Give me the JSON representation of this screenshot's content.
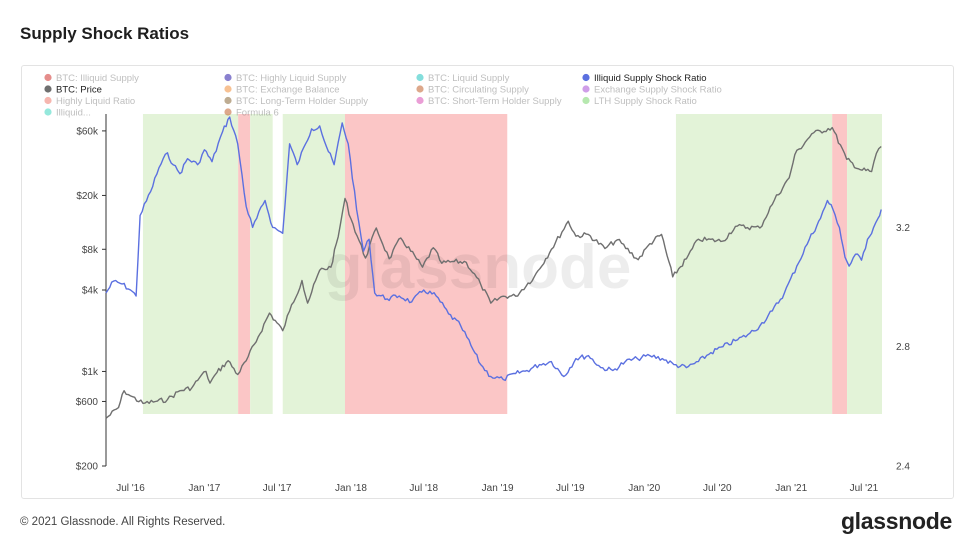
{
  "title": "Supply Shock Ratios",
  "footer": {
    "copyright": "© 2021 Glassnode. All Rights Reserved.",
    "logo": "glassnode"
  },
  "watermark": "glassnode",
  "colors": {
    "price_line": "#6f6f6f",
    "ratio_line": "#5b70e0",
    "green_band": "#e3f3d8",
    "red_band": "#fbc6c6"
  },
  "legend": [
    {
      "label": "BTC: Illiquid Supply",
      "color": "#d0312d",
      "active": false
    },
    {
      "label": "BTC: Highly Liquid Supply",
      "color": "#2a1aa8",
      "active": false
    },
    {
      "label": "BTC: Liquid Supply",
      "color": "#21c4c0",
      "active": false
    },
    {
      "label": "Illiquid Supply Shock Ratio",
      "color": "#5b70e0",
      "active": true
    },
    {
      "label": "BTC: Price",
      "color": "#6f6f6f",
      "active": true
    },
    {
      "label": "BTC: Exchange Balance",
      "color": "#f28f3b",
      "active": false
    },
    {
      "label": "BTC: Circulating Supply",
      "color": "#c2622d",
      "active": false
    },
    {
      "label": "Exchange Supply Shock Ratio",
      "color": "#a950d6",
      "active": false
    },
    {
      "label": "Highly Liquid Ratio",
      "color": "#f07b6e",
      "active": false
    },
    {
      "label": "BTC: Long-Term Holder Supply",
      "color": "#8a6a3a",
      "active": false
    },
    {
      "label": "BTC: Short-Term Holder Supply",
      "color": "#d94fb5",
      "active": false
    },
    {
      "label": "LTH Supply Shock Ratio",
      "color": "#7cd66e",
      "active": false
    },
    {
      "label": "Illiquid...",
      "color": "#3fd6c0",
      "active": false
    },
    {
      "label": "Formula 6",
      "color": "#c2622d",
      "active": false
    }
  ],
  "chart_data": {
    "type": "line",
    "x_tick_labels": [
      "Jul '16",
      "Jan '17",
      "Jul '17",
      "Jan '18",
      "Jul '18",
      "Jan '19",
      "Jul '19",
      "Jan '20",
      "Jul '20",
      "Jan '21",
      "Jul '21"
    ],
    "x_tick_dates": [
      "2016-07-01",
      "2017-01-01",
      "2017-07-01",
      "2018-01-01",
      "2018-07-01",
      "2019-01-01",
      "2019-07-01",
      "2020-01-01",
      "2020-07-01",
      "2021-01-01",
      "2021-07-01"
    ],
    "x_range": [
      "2016-05-01",
      "2021-08-15"
    ],
    "y_left": {
      "label": "",
      "scale": "log",
      "range": [
        200,
        80000
      ],
      "ticks": [
        200,
        600,
        1000,
        4000,
        8000,
        20000,
        60000
      ],
      "tick_labels": [
        "$200",
        "$600",
        "$1k",
        "$4k",
        "$8k",
        "$20k",
        "$60k"
      ]
    },
    "y_right": {
      "label": "",
      "scale": "linear",
      "range": [
        2.4,
        3.58
      ],
      "ticks": [
        2.4,
        2.8,
        3.2
      ],
      "tick_labels": [
        "2.4",
        "2.8",
        "3.2"
      ]
    },
    "series": [
      {
        "name": "BTC: Price",
        "axis": "left",
        "color": "#6f6f6f",
        "points": [
          [
            "2016-05-01",
            450
          ],
          [
            "2016-06-01",
            540
          ],
          [
            "2016-06-15",
            720
          ],
          [
            "2016-07-01",
            660
          ],
          [
            "2016-08-01",
            580
          ],
          [
            "2016-09-01",
            600
          ],
          [
            "2016-10-01",
            620
          ],
          [
            "2016-11-01",
            720
          ],
          [
            "2016-12-01",
            760
          ],
          [
            "2016-12-20",
            900
          ],
          [
            "2017-01-05",
            1000
          ],
          [
            "2017-01-15",
            820
          ],
          [
            "2017-02-01",
            980
          ],
          [
            "2017-03-01",
            1200
          ],
          [
            "2017-03-25",
            950
          ],
          [
            "2017-04-15",
            1200
          ],
          [
            "2017-05-15",
            1800
          ],
          [
            "2017-06-12",
            2700
          ],
          [
            "2017-07-15",
            2000
          ],
          [
            "2017-08-01",
            2800
          ],
          [
            "2017-09-01",
            4700
          ],
          [
            "2017-09-15",
            3200
          ],
          [
            "2017-10-15",
            5600
          ],
          [
            "2017-11-12",
            5900
          ],
          [
            "2017-11-30",
            9900
          ],
          [
            "2017-12-17",
            19000
          ],
          [
            "2018-01-01",
            13400
          ],
          [
            "2018-02-06",
            6900
          ],
          [
            "2018-03-05",
            11500
          ],
          [
            "2018-04-06",
            6800
          ],
          [
            "2018-05-05",
            9700
          ],
          [
            "2018-06-28",
            5900
          ],
          [
            "2018-07-25",
            8200
          ],
          [
            "2018-08-15",
            6300
          ],
          [
            "2018-09-15",
            6500
          ],
          [
            "2018-10-15",
            6400
          ],
          [
            "2018-11-20",
            4400
          ],
          [
            "2018-12-15",
            3200
          ],
          [
            "2019-01-15",
            3600
          ],
          [
            "2019-02-15",
            3600
          ],
          [
            "2019-04-02",
            5000
          ],
          [
            "2019-05-15",
            8000
          ],
          [
            "2019-06-26",
            12900
          ],
          [
            "2019-07-15",
            10000
          ],
          [
            "2019-08-15",
            10300
          ],
          [
            "2019-09-25",
            8100
          ],
          [
            "2019-10-26",
            9400
          ],
          [
            "2019-12-17",
            6700
          ],
          [
            "2020-01-15",
            8800
          ],
          [
            "2020-02-13",
            10300
          ],
          [
            "2020-03-12",
            5000
          ],
          [
            "2020-04-15",
            6800
          ],
          [
            "2020-05-15",
            9500
          ],
          [
            "2020-07-15",
            9200
          ],
          [
            "2020-08-15",
            11800
          ],
          [
            "2020-10-15",
            11500
          ],
          [
            "2020-11-20",
            18500
          ],
          [
            "2020-12-27",
            27000
          ],
          [
            "2021-01-10",
            40000
          ],
          [
            "2021-02-21",
            57000
          ],
          [
            "2021-04-13",
            63500
          ],
          [
            "2021-05-19",
            37000
          ],
          [
            "2021-06-22",
            31000
          ],
          [
            "2021-07-20",
            30000
          ],
          [
            "2021-08-01",
            41000
          ],
          [
            "2021-08-13",
            46000
          ]
        ]
      },
      {
        "name": "Illiquid Supply Shock Ratio",
        "axis": "right",
        "color": "#5b70e0",
        "points": [
          [
            "2016-05-01",
            2.98
          ],
          [
            "2016-05-20",
            3.02
          ],
          [
            "2016-06-10",
            3.01
          ],
          [
            "2016-07-01",
            2.99
          ],
          [
            "2016-07-15",
            2.97
          ],
          [
            "2016-07-25",
            3.24
          ],
          [
            "2016-08-20",
            3.32
          ],
          [
            "2016-09-10",
            3.4
          ],
          [
            "2016-10-01",
            3.45
          ],
          [
            "2016-10-15",
            3.41
          ],
          [
            "2016-11-01",
            3.38
          ],
          [
            "2016-11-20",
            3.43
          ],
          [
            "2016-12-15",
            3.41
          ],
          [
            "2017-01-01",
            3.46
          ],
          [
            "2017-01-20",
            3.42
          ],
          [
            "2017-02-15",
            3.52
          ],
          [
            "2017-03-05",
            3.57
          ],
          [
            "2017-03-25",
            3.48
          ],
          [
            "2017-04-15",
            3.27
          ],
          [
            "2017-05-01",
            3.2
          ],
          [
            "2017-06-01",
            3.29
          ],
          [
            "2017-06-20",
            3.2
          ],
          [
            "2017-07-15",
            3.18
          ],
          [
            "2017-08-01",
            3.48
          ],
          [
            "2017-08-20",
            3.41
          ],
          [
            "2017-09-10",
            3.48
          ],
          [
            "2017-09-25",
            3.53
          ],
          [
            "2017-10-15",
            3.54
          ],
          [
            "2017-11-01",
            3.47
          ],
          [
            "2017-11-20",
            3.41
          ],
          [
            "2017-12-10",
            3.55
          ],
          [
            "2017-12-25",
            3.48
          ],
          [
            "2018-01-15",
            3.26
          ],
          [
            "2018-02-01",
            3.12
          ],
          [
            "2018-02-15",
            3.16
          ],
          [
            "2018-03-01",
            2.98
          ],
          [
            "2018-04-01",
            2.96
          ],
          [
            "2018-05-01",
            2.97
          ],
          [
            "2018-06-01",
            2.95
          ],
          [
            "2018-07-01",
            2.99
          ],
          [
            "2018-08-01",
            2.97
          ],
          [
            "2018-09-01",
            2.91
          ],
          [
            "2018-10-01",
            2.87
          ],
          [
            "2018-11-01",
            2.79
          ],
          [
            "2018-11-20",
            2.74
          ],
          [
            "2018-12-15",
            2.7
          ],
          [
            "2019-01-15",
            2.69
          ],
          [
            "2019-02-15",
            2.71
          ],
          [
            "2019-03-15",
            2.72
          ],
          [
            "2019-04-15",
            2.74
          ],
          [
            "2019-05-15",
            2.75
          ],
          [
            "2019-06-15",
            2.7
          ],
          [
            "2019-07-15",
            2.76
          ],
          [
            "2019-08-15",
            2.77
          ],
          [
            "2019-09-15",
            2.73
          ],
          [
            "2019-10-15",
            2.72
          ],
          [
            "2019-11-15",
            2.75
          ],
          [
            "2019-12-15",
            2.76
          ],
          [
            "2020-01-15",
            2.77
          ],
          [
            "2020-02-15",
            2.76
          ],
          [
            "2020-03-15",
            2.74
          ],
          [
            "2020-04-15",
            2.73
          ],
          [
            "2020-05-15",
            2.75
          ],
          [
            "2020-06-15",
            2.78
          ],
          [
            "2020-07-15",
            2.8
          ],
          [
            "2020-08-15",
            2.82
          ],
          [
            "2020-09-15",
            2.84
          ],
          [
            "2020-10-15",
            2.87
          ],
          [
            "2020-11-15",
            2.92
          ],
          [
            "2020-12-15",
            2.98
          ],
          [
            "2021-01-15",
            3.07
          ],
          [
            "2021-02-15",
            3.16
          ],
          [
            "2021-03-15",
            3.23
          ],
          [
            "2021-04-01",
            3.29
          ],
          [
            "2021-04-15",
            3.26
          ],
          [
            "2021-05-01",
            3.2
          ],
          [
            "2021-05-15",
            3.1
          ],
          [
            "2021-05-25",
            3.07
          ],
          [
            "2021-06-10",
            3.11
          ],
          [
            "2021-06-25",
            3.09
          ],
          [
            "2021-07-10",
            3.16
          ],
          [
            "2021-07-25",
            3.2
          ],
          [
            "2021-08-05",
            3.23
          ],
          [
            "2021-08-13",
            3.26
          ]
        ]
      }
    ],
    "bands": [
      {
        "type": "green",
        "start": "2016-08-01",
        "end": "2017-03-26"
      },
      {
        "type": "red",
        "start": "2017-03-26",
        "end": "2017-04-25"
      },
      {
        "type": "green",
        "start": "2017-04-25",
        "end": "2017-06-20"
      },
      {
        "type": "green",
        "start": "2017-07-15",
        "end": "2017-12-17"
      },
      {
        "type": "red",
        "start": "2017-12-17",
        "end": "2019-01-25"
      },
      {
        "type": "green",
        "start": "2020-03-20",
        "end": "2021-04-13"
      },
      {
        "type": "red",
        "start": "2021-04-13",
        "end": "2021-05-20"
      },
      {
        "type": "green",
        "start": "2021-05-20",
        "end": "2021-08-15"
      }
    ],
    "grid": false,
    "legend_position": "top"
  }
}
